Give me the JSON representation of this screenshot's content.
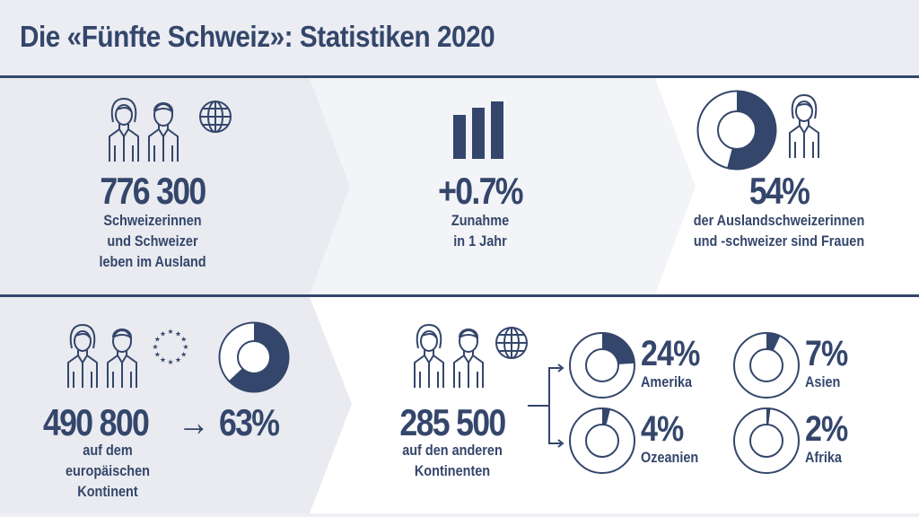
{
  "title": "Die «Fünfte Schweiz»: Statistiken 2020",
  "colors": {
    "navy": "#34466b",
    "panel_gray": "#e9ebf0",
    "panel_light": "#f3f4f7",
    "white": "#ffffff"
  },
  "stats": {
    "abroad": {
      "value": "776 300",
      "label": [
        "Schweizerinnen",
        "und Schweizer",
        "leben im Ausland"
      ],
      "icons": [
        "woman-icon",
        "man-icon",
        "globe-icon"
      ]
    },
    "growth": {
      "value": "+0.7%",
      "label": [
        "Zunahme",
        "in 1 Jahr"
      ],
      "icons": [
        "bar-chart-icon"
      ]
    },
    "women": {
      "value": "54%",
      "share": 54,
      "label": [
        "der Auslandschweizerinnen",
        "und -schweizer sind Frauen"
      ],
      "icons": [
        "donut-icon",
        "woman-icon"
      ]
    },
    "europe": {
      "value": "490 800",
      "arrow": "→",
      "percent": "63%",
      "share": 63,
      "label": [
        "auf dem",
        "europäischen",
        "Kontinent"
      ],
      "icons": [
        "woman-icon",
        "man-icon",
        "eu-stars-icon"
      ]
    },
    "other": {
      "value": "285 500",
      "label": [
        "auf den anderen",
        "Kontinenten"
      ],
      "icons": [
        "woman-icon",
        "man-icon",
        "globe-icon"
      ]
    }
  },
  "continents": [
    {
      "name": "Amerika",
      "percent": "24%",
      "share": 24
    },
    {
      "name": "Asien",
      "percent": "7%",
      "share": 7
    },
    {
      "name": "Ozeanien",
      "percent": "4%",
      "share": 4
    },
    {
      "name": "Afrika",
      "percent": "2%",
      "share": 2
    }
  ]
}
